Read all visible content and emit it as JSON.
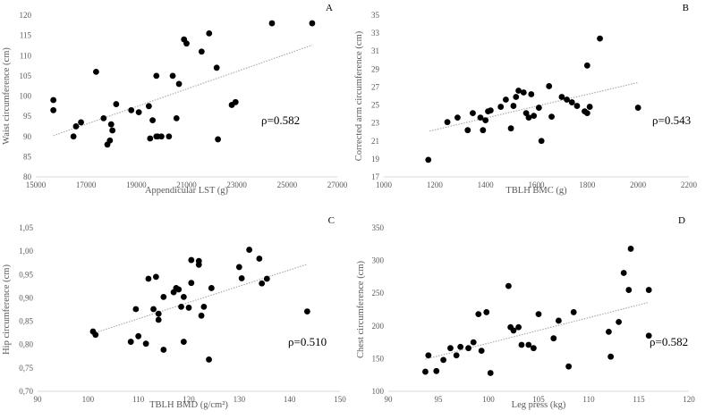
{
  "chart_data": [
    {
      "type": "scatter",
      "letter": "A",
      "xlabel": "Appendicular LST (g)",
      "ylabel": "Waist circumference (cm)",
      "xlim": [
        15000,
        27000
      ],
      "ylim": [
        80,
        120
      ],
      "xticks": [
        15000,
        17000,
        19000,
        21000,
        23000,
        25000,
        27000
      ],
      "yticks": [
        80,
        85,
        90,
        95,
        100,
        105,
        110,
        115,
        120
      ],
      "x_tick_labels": [
        "15000",
        "17000",
        "19000",
        "21000",
        "23000",
        "25000",
        "27000"
      ],
      "y_tick_labels": [
        "80",
        "85",
        "90",
        "95",
        "100",
        "105",
        "110",
        "115",
        "120"
      ],
      "annotation": "ρ=0.582",
      "trend": [
        [
          15700,
          90.2
        ],
        [
          26000,
          112.6
        ]
      ],
      "points": [
        [
          15700,
          99
        ],
        [
          15700,
          96.5
        ],
        [
          16500,
          90
        ],
        [
          16600,
          92.5
        ],
        [
          16800,
          93.5
        ],
        [
          17400,
          106
        ],
        [
          17700,
          94.5
        ],
        [
          17850,
          88
        ],
        [
          17950,
          89
        ],
        [
          18000,
          93
        ],
        [
          18050,
          91.5
        ],
        [
          18200,
          98
        ],
        [
          18800,
          96.5
        ],
        [
          19100,
          96
        ],
        [
          19500,
          97.5
        ],
        [
          19550,
          89.5
        ],
        [
          19650,
          94
        ],
        [
          19800,
          105
        ],
        [
          19800,
          90
        ],
        [
          19850,
          90
        ],
        [
          20000,
          90
        ],
        [
          20300,
          90
        ],
        [
          20450,
          105
        ],
        [
          20600,
          94.5
        ],
        [
          20700,
          103
        ],
        [
          20900,
          114
        ],
        [
          21000,
          113
        ],
        [
          21600,
          111
        ],
        [
          21900,
          115.5
        ],
        [
          22200,
          107
        ],
        [
          22250,
          89.3
        ],
        [
          22800,
          97.8
        ],
        [
          22950,
          98.5
        ],
        [
          24400,
          118
        ],
        [
          26000,
          118
        ]
      ]
    },
    {
      "type": "scatter",
      "letter": "B",
      "xlabel": "TBLH BMC (g)",
      "ylabel": "Corrected arm circumference (cm)",
      "xlim": [
        1000,
        2200
      ],
      "ylim": [
        17,
        35
      ],
      "xticks": [
        1000,
        1200,
        1400,
        1600,
        1800,
        2000,
        2200
      ],
      "yticks": [
        17,
        19,
        21,
        23,
        25,
        27,
        29,
        31,
        33,
        35
      ],
      "x_tick_labels": [
        "1000",
        "1200",
        "1400",
        "1600",
        "1800",
        "2000",
        "2200"
      ],
      "y_tick_labels": [
        "17",
        "19",
        "21",
        "23",
        "25",
        "27",
        "29",
        "31",
        "33",
        "35"
      ],
      "annotation": "ρ=0.543",
      "trend": [
        [
          1180,
          22.1
        ],
        [
          2000,
          27.5
        ]
      ],
      "points": [
        [
          1175,
          18.9
        ],
        [
          1250,
          23.1
        ],
        [
          1290,
          23.6
        ],
        [
          1330,
          22.2
        ],
        [
          1350,
          24.1
        ],
        [
          1380,
          23.6
        ],
        [
          1390,
          22.2
        ],
        [
          1400,
          23.3
        ],
        [
          1410,
          24.3
        ],
        [
          1420,
          24.4
        ],
        [
          1460,
          24.8
        ],
        [
          1480,
          25.6
        ],
        [
          1500,
          22.4
        ],
        [
          1510,
          24.9
        ],
        [
          1520,
          25.9
        ],
        [
          1530,
          26.6
        ],
        [
          1550,
          26.4
        ],
        [
          1560,
          24.1
        ],
        [
          1570,
          23.6
        ],
        [
          1580,
          26.2
        ],
        [
          1590,
          23.8
        ],
        [
          1610,
          24.7
        ],
        [
          1620,
          21.0
        ],
        [
          1650,
          27.1
        ],
        [
          1660,
          23.7
        ],
        [
          1700,
          25.9
        ],
        [
          1720,
          25.6
        ],
        [
          1740,
          25.3
        ],
        [
          1760,
          24.9
        ],
        [
          1790,
          24.3
        ],
        [
          1800,
          24.1
        ],
        [
          1810,
          24.8
        ],
        [
          1800,
          29.4
        ],
        [
          1850,
          32.4
        ],
        [
          2000,
          24.7
        ]
      ]
    },
    {
      "type": "scatter",
      "letter": "C",
      "xlabel": "TBLH BMD (g/cm²)",
      "ylabel": "Hip circumference (cm)",
      "xlim": [
        90,
        150
      ],
      "ylim": [
        0.7,
        1.05
      ],
      "xticks": [
        90,
        100,
        110,
        120,
        130,
        140,
        150
      ],
      "yticks": [
        0.7,
        0.75,
        0.8,
        0.85,
        0.9,
        0.95,
        1.0,
        1.05
      ],
      "x_tick_labels": [
        "90",
        "100",
        "110",
        "120",
        "130",
        "140",
        "150"
      ],
      "y_tick_labels": [
        "0,70",
        "0,75",
        "0,80",
        "0,85",
        "0,90",
        "0,95",
        "1,00",
        "1,05"
      ],
      "annotation": "ρ=0.510",
      "trend": [
        [
          101,
          0.824
        ],
        [
          143.5,
          0.972
        ]
      ],
      "points": [
        [
          101,
          0.828
        ],
        [
          101.5,
          0.821
        ],
        [
          108.5,
          0.806
        ],
        [
          109.5,
          0.876
        ],
        [
          110,
          0.818
        ],
        [
          111.5,
          0.802
        ],
        [
          112,
          0.941
        ],
        [
          113,
          0.876
        ],
        [
          113.5,
          0.945
        ],
        [
          114,
          0.866
        ],
        [
          114,
          0.853
        ],
        [
          115,
          0.902
        ],
        [
          115,
          0.789
        ],
        [
          117,
          0.912
        ],
        [
          117.5,
          0.921
        ],
        [
          118,
          0.918
        ],
        [
          118.5,
          0.881
        ],
        [
          119,
          0.806
        ],
        [
          119,
          0.902
        ],
        [
          120,
          0.879
        ],
        [
          120.5,
          0.932
        ],
        [
          120.5,
          0.981
        ],
        [
          122,
          0.979
        ],
        [
          122,
          0.971
        ],
        [
          122.5,
          0.862
        ],
        [
          123,
          0.881
        ],
        [
          124,
          0.768
        ],
        [
          124.5,
          0.921
        ],
        [
          130,
          0.966
        ],
        [
          130.5,
          0.942
        ],
        [
          132,
          1.003
        ],
        [
          134,
          0.984
        ],
        [
          134.5,
          0.931
        ],
        [
          135.5,
          0.941
        ],
        [
          143.5,
          0.871
        ]
      ]
    },
    {
      "type": "scatter",
      "letter": "D",
      "xlabel": "Leg press (kg)",
      "ylabel": "Chest circumference (cm)",
      "xlim": [
        90,
        120
      ],
      "ylim": [
        100,
        350
      ],
      "xticks": [
        90,
        95,
        100,
        105,
        110,
        115,
        120
      ],
      "yticks": [
        100,
        150,
        200,
        250,
        300,
        350
      ],
      "x_tick_labels": [
        "90",
        "95",
        "100",
        "105",
        "110",
        "115",
        "120"
      ],
      "y_tick_labels": [
        "100",
        "150",
        "200",
        "250",
        "300",
        "350"
      ],
      "annotation": "ρ=0.582",
      "trend": [
        [
          93.7,
          149
        ],
        [
          116,
          236
        ]
      ],
      "points": [
        [
          93.7,
          130
        ],
        [
          94,
          155
        ],
        [
          94.8,
          131
        ],
        [
          95.5,
          148
        ],
        [
          96.2,
          166
        ],
        [
          96.8,
          155
        ],
        [
          97.2,
          168
        ],
        [
          98,
          166
        ],
        [
          98.5,
          175
        ],
        [
          99,
          218
        ],
        [
          99.3,
          162
        ],
        [
          99.8,
          221
        ],
        [
          100.2,
          128
        ],
        [
          102,
          261
        ],
        [
          102.2,
          198
        ],
        [
          102.5,
          193
        ],
        [
          103,
          198
        ],
        [
          103.3,
          171
        ],
        [
          104,
          171
        ],
        [
          104.5,
          166
        ],
        [
          105,
          218
        ],
        [
          106.5,
          181
        ],
        [
          107,
          208
        ],
        [
          108,
          138
        ],
        [
          108.5,
          221
        ],
        [
          112,
          191
        ],
        [
          112.2,
          153
        ],
        [
          113,
          206
        ],
        [
          113.5,
          281
        ],
        [
          114,
          255
        ],
        [
          114.2,
          318
        ],
        [
          116,
          255
        ],
        [
          116,
          185
        ]
      ]
    }
  ]
}
